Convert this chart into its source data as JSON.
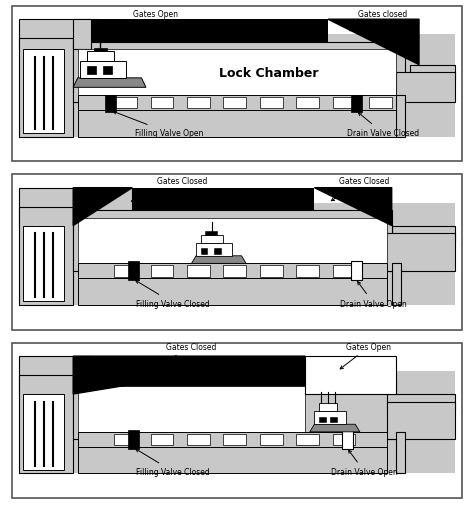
{
  "bg_color": "#ffffff",
  "gray": "#c8c8c8",
  "black": "#000000",
  "white": "#ffffff",
  "dark_gray": "#888888",
  "panels": [
    {
      "label_tl": "Gates Open",
      "label_tr": "Gates closed",
      "label_bl": "Filling Valve Open",
      "label_br": "Drain Valve Closed"
    },
    {
      "label_tl": "Gates Closed",
      "label_tr": "Gates Closed",
      "label_bl": "Filling Valve Closed",
      "label_br": "Drain Valve Open"
    },
    {
      "label_tl": "Gates Closed",
      "label_tr": "Gates Open",
      "label_bl": "Filling Valve Closed",
      "label_br": "Drain Valve Open"
    }
  ]
}
